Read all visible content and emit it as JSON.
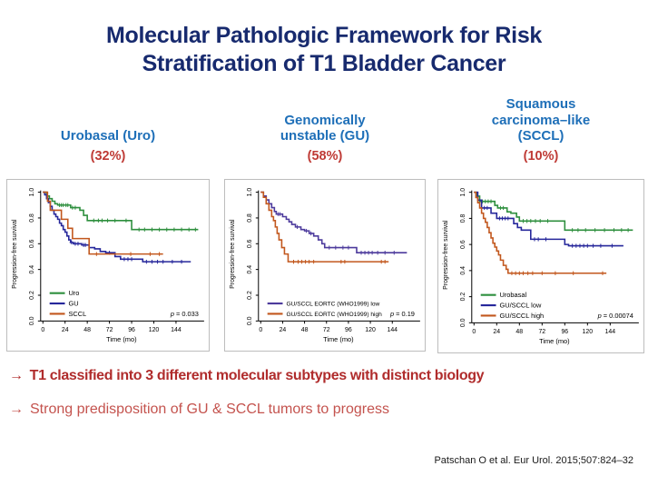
{
  "title": {
    "line1": "Molecular Pathologic Framework for Risk",
    "line2": "Stratification of T1 Bladder Cancer"
  },
  "columns": [
    {
      "header_lines": [
        "Urobasal (Uro)"
      ],
      "percent": "(32%)"
    },
    {
      "header_lines": [
        "Genomically",
        "unstable (GU)"
      ],
      "percent": "(58%)"
    },
    {
      "header_lines": [
        "Squamous",
        "carcinoma–like",
        "(SCCL)"
      ],
      "percent": "(10%)"
    }
  ],
  "bullets": [
    {
      "arrow": "→",
      "text": "T1 classified into 3 different molecular subtypes with distinct biology"
    },
    {
      "arrow": "→",
      "text": "Strong predisposition of GU & SCCL tumors to progress"
    }
  ],
  "citation": "Patschan O et al. Eur Urol. 2015;507:824–32",
  "colors": {
    "title": "#172a6e",
    "header_blue": "#1e6fb8",
    "percent_red": "#bf3a35",
    "bullet1_red": "#b02c2c",
    "bullet2_red": "#c4534e",
    "citation": "#1a1a1a",
    "axis": "#000000",
    "chart_frame": "#bdbdbd",
    "series_green": "#2e8f3e",
    "series_blue": "#26279b",
    "series_orange": "#c2571d",
    "series_purple": "#4c3a9c"
  },
  "chart_data": [
    {
      "type": "line",
      "subtype": "kaplan-meier-step",
      "xlabel": "Time (mo)",
      "ylabel": "Progression-free survival",
      "xlim": [
        0,
        170
      ],
      "ylim": [
        0,
        1.04
      ],
      "xticks": [
        0,
        24,
        48,
        72,
        96,
        120,
        144
      ],
      "yticks": [
        0.0,
        0.2,
        0.4,
        0.6,
        0.8,
        1.0
      ],
      "p_value": "p = 0.033",
      "legend_position": "bottom-left",
      "legend_font": 7.5,
      "series": [
        {
          "name": "Uro",
          "color": "#2e8f3e",
          "steps": [
            [
              0,
              1.0
            ],
            [
              4,
              0.97
            ],
            [
              7,
              0.95
            ],
            [
              10,
              0.93
            ],
            [
              13,
              0.91
            ],
            [
              16,
              0.9
            ],
            [
              30,
              0.88
            ],
            [
              40,
              0.86
            ],
            [
              44,
              0.82
            ],
            [
              48,
              0.78
            ],
            [
              96,
              0.71
            ],
            [
              168,
              0.71
            ]
          ],
          "censors": [
            [
              18,
              0.9
            ],
            [
              20,
              0.9
            ],
            [
              22,
              0.9
            ],
            [
              25,
              0.9
            ],
            [
              27,
              0.9
            ],
            [
              32,
              0.88
            ],
            [
              35,
              0.88
            ],
            [
              55,
              0.78
            ],
            [
              60,
              0.78
            ],
            [
              64,
              0.78
            ],
            [
              70,
              0.78
            ],
            [
              78,
              0.78
            ],
            [
              90,
              0.78
            ],
            [
              104,
              0.71
            ],
            [
              110,
              0.71
            ],
            [
              118,
              0.71
            ],
            [
              126,
              0.71
            ],
            [
              134,
              0.71
            ],
            [
              142,
              0.71
            ],
            [
              150,
              0.71
            ],
            [
              158,
              0.71
            ],
            [
              165,
              0.71
            ]
          ]
        },
        {
          "name": "GU",
          "color": "#26279b",
          "steps": [
            [
              0,
              1.0
            ],
            [
              2,
              0.98
            ],
            [
              4,
              0.95
            ],
            [
              6,
              0.92
            ],
            [
              8,
              0.89
            ],
            [
              10,
              0.86
            ],
            [
              12,
              0.83
            ],
            [
              14,
              0.81
            ],
            [
              16,
              0.79
            ],
            [
              18,
              0.76
            ],
            [
              20,
              0.74
            ],
            [
              22,
              0.71
            ],
            [
              24,
              0.69
            ],
            [
              26,
              0.66
            ],
            [
              28,
              0.63
            ],
            [
              30,
              0.61
            ],
            [
              33,
              0.6
            ],
            [
              42,
              0.59
            ],
            [
              50,
              0.57
            ],
            [
              56,
              0.56
            ],
            [
              62,
              0.54
            ],
            [
              68,
              0.53
            ],
            [
              78,
              0.5
            ],
            [
              84,
              0.48
            ],
            [
              108,
              0.46
            ],
            [
              160,
              0.46
            ]
          ],
          "censors": [
            [
              31,
              0.61
            ],
            [
              35,
              0.6
            ],
            [
              38,
              0.6
            ],
            [
              44,
              0.59
            ],
            [
              46,
              0.59
            ],
            [
              72,
              0.53
            ],
            [
              88,
              0.48
            ],
            [
              92,
              0.48
            ],
            [
              96,
              0.48
            ],
            [
              112,
              0.46
            ],
            [
              118,
              0.46
            ],
            [
              124,
              0.46
            ],
            [
              130,
              0.46
            ],
            [
              140,
              0.46
            ],
            [
              150,
              0.46
            ]
          ]
        },
        {
          "name": "SCCL",
          "color": "#c2571d",
          "steps": [
            [
              0,
              1.0
            ],
            [
              5,
              0.93
            ],
            [
              8,
              0.86
            ],
            [
              20,
              0.79
            ],
            [
              27,
              0.72
            ],
            [
              32,
              0.64
            ],
            [
              50,
              0.52
            ],
            [
              130,
              0.52
            ]
          ],
          "censors": [
            [
              58,
              0.52
            ],
            [
              95,
              0.52
            ],
            [
              116,
              0.52
            ],
            [
              126,
              0.52
            ]
          ]
        }
      ]
    },
    {
      "type": "line",
      "subtype": "kaplan-meier-step",
      "xlabel": "Time (mo)",
      "ylabel": "Progression-free survival",
      "xlim": [
        0,
        170
      ],
      "ylim": [
        0,
        1.04
      ],
      "xticks": [
        0,
        24,
        48,
        72,
        96,
        120,
        144
      ],
      "yticks": [
        0.0,
        0.2,
        0.4,
        0.6,
        0.8,
        1.0
      ],
      "p_value": "p = 0.19",
      "legend_position": "bottom-left",
      "legend_font": 6.7,
      "series": [
        {
          "name": "GU/SCCL EORTC (WHO1999) low",
          "color": "#4c3a9c",
          "steps": [
            [
              0,
              1.0
            ],
            [
              3,
              0.97
            ],
            [
              6,
              0.94
            ],
            [
              9,
              0.91
            ],
            [
              12,
              0.88
            ],
            [
              15,
              0.85
            ],
            [
              17,
              0.83
            ],
            [
              24,
              0.81
            ],
            [
              28,
              0.79
            ],
            [
              31,
              0.77
            ],
            [
              34,
              0.75
            ],
            [
              38,
              0.73
            ],
            [
              44,
              0.71
            ],
            [
              48,
              0.7
            ],
            [
              53,
              0.68
            ],
            [
              58,
              0.66
            ],
            [
              63,
              0.63
            ],
            [
              67,
              0.6
            ],
            [
              70,
              0.57
            ],
            [
              105,
              0.53
            ],
            [
              160,
              0.53
            ]
          ],
          "censors": [
            [
              19,
              0.83
            ],
            [
              21,
              0.83
            ],
            [
              40,
              0.73
            ],
            [
              50,
              0.7
            ],
            [
              55,
              0.68
            ],
            [
              75,
              0.57
            ],
            [
              82,
              0.57
            ],
            [
              90,
              0.57
            ],
            [
              96,
              0.57
            ],
            [
              110,
              0.53
            ],
            [
              114,
              0.53
            ],
            [
              118,
              0.53
            ],
            [
              122,
              0.53
            ],
            [
              128,
              0.53
            ],
            [
              136,
              0.53
            ],
            [
              146,
              0.53
            ]
          ]
        },
        {
          "name": "GU/SCCL EORTC (WHO1999) high",
          "color": "#c2571d",
          "steps": [
            [
              0,
              1.0
            ],
            [
              3,
              0.96
            ],
            [
              6,
              0.91
            ],
            [
              9,
              0.86
            ],
            [
              12,
              0.81
            ],
            [
              14,
              0.78
            ],
            [
              16,
              0.73
            ],
            [
              18,
              0.68
            ],
            [
              20,
              0.63
            ],
            [
              23,
              0.57
            ],
            [
              26,
              0.52
            ],
            [
              30,
              0.46
            ],
            [
              140,
              0.46
            ]
          ],
          "censors": [
            [
              36,
              0.46
            ],
            [
              41,
              0.46
            ],
            [
              45,
              0.46
            ],
            [
              49,
              0.46
            ],
            [
              53,
              0.46
            ],
            [
              58,
              0.46
            ],
            [
              88,
              0.46
            ],
            [
              92,
              0.46
            ],
            [
              132,
              0.46
            ],
            [
              136,
              0.46
            ]
          ]
        }
      ]
    },
    {
      "type": "line",
      "subtype": "kaplan-meier-step",
      "xlabel": "Time (mo)",
      "ylabel": "Progression-free survival",
      "xlim": [
        0,
        170
      ],
      "ylim": [
        0,
        1.04
      ],
      "xticks": [
        0,
        24,
        48,
        72,
        96,
        120,
        144
      ],
      "yticks": [
        0.0,
        0.2,
        0.4,
        0.6,
        0.8,
        1.0
      ],
      "p_value": "p = 0.00074",
      "legend_position": "bottom-left",
      "legend_font": 7.5,
      "series": [
        {
          "name": "Urobasal",
          "color": "#2e8f3e",
          "steps": [
            [
              0,
              1.0
            ],
            [
              3,
              0.97
            ],
            [
              6,
              0.93
            ],
            [
              22,
              0.9
            ],
            [
              25,
              0.88
            ],
            [
              35,
              0.85
            ],
            [
              39,
              0.84
            ],
            [
              45,
              0.81
            ],
            [
              48,
              0.78
            ],
            [
              96,
              0.71
            ],
            [
              168,
              0.71
            ]
          ],
          "censors": [
            [
              9,
              0.93
            ],
            [
              12,
              0.93
            ],
            [
              15,
              0.93
            ],
            [
              18,
              0.93
            ],
            [
              28,
              0.88
            ],
            [
              31,
              0.88
            ],
            [
              52,
              0.78
            ],
            [
              56,
              0.78
            ],
            [
              60,
              0.78
            ],
            [
              65,
              0.78
            ],
            [
              70,
              0.78
            ],
            [
              78,
              0.78
            ],
            [
              104,
              0.71
            ],
            [
              110,
              0.71
            ],
            [
              118,
              0.71
            ],
            [
              128,
              0.71
            ],
            [
              138,
              0.71
            ],
            [
              148,
              0.71
            ],
            [
              156,
              0.71
            ],
            [
              163,
              0.71
            ]
          ]
        },
        {
          "name": "GU/SCCL low",
          "color": "#26279b",
          "steps": [
            [
              0,
              1.0
            ],
            [
              4,
              0.94
            ],
            [
              8,
              0.88
            ],
            [
              18,
              0.84
            ],
            [
              24,
              0.8
            ],
            [
              42,
              0.76
            ],
            [
              46,
              0.73
            ],
            [
              50,
              0.71
            ],
            [
              60,
              0.64
            ],
            [
              96,
              0.6
            ],
            [
              100,
              0.59
            ],
            [
              158,
              0.59
            ]
          ],
          "censors": [
            [
              11,
              0.88
            ],
            [
              14,
              0.88
            ],
            [
              27,
              0.8
            ],
            [
              30,
              0.8
            ],
            [
              33,
              0.8
            ],
            [
              36,
              0.8
            ],
            [
              64,
              0.64
            ],
            [
              68,
              0.64
            ],
            [
              76,
              0.64
            ],
            [
              104,
              0.59
            ],
            [
              108,
              0.59
            ],
            [
              112,
              0.59
            ],
            [
              116,
              0.59
            ],
            [
              120,
              0.59
            ],
            [
              126,
              0.59
            ],
            [
              134,
              0.59
            ],
            [
              146,
              0.59
            ]
          ]
        },
        {
          "name": "GU/SCCL high",
          "color": "#c2571d",
          "steps": [
            [
              0,
              1.0
            ],
            [
              2,
              0.96
            ],
            [
              4,
              0.92
            ],
            [
              6,
              0.88
            ],
            [
              8,
              0.84
            ],
            [
              10,
              0.8
            ],
            [
              12,
              0.77
            ],
            [
              14,
              0.73
            ],
            [
              16,
              0.69
            ],
            [
              18,
              0.65
            ],
            [
              20,
              0.61
            ],
            [
              22,
              0.58
            ],
            [
              24,
              0.55
            ],
            [
              26,
              0.52
            ],
            [
              28,
              0.48
            ],
            [
              31,
              0.44
            ],
            [
              34,
              0.41
            ],
            [
              36,
              0.38
            ],
            [
              140,
              0.38
            ]
          ],
          "censors": [
            [
              40,
              0.38
            ],
            [
              44,
              0.38
            ],
            [
              48,
              0.38
            ],
            [
              52,
              0.38
            ],
            [
              57,
              0.38
            ],
            [
              62,
              0.38
            ],
            [
              72,
              0.38
            ],
            [
              86,
              0.38
            ],
            [
              105,
              0.38
            ],
            [
              136,
              0.38
            ]
          ]
        }
      ]
    }
  ]
}
